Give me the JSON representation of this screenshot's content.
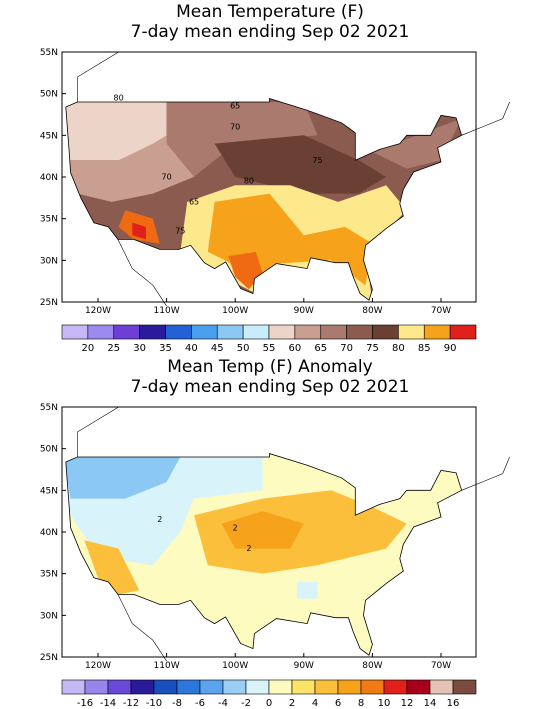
{
  "panels": [
    {
      "title_lines": [
        "Mean Temperature (F)",
        "7-day mean ending Sep 02 2021"
      ],
      "lat_labels": [
        "55N",
        "50N",
        "45N",
        "40N",
        "35N",
        "30N",
        "25N"
      ],
      "lon_labels": [
        "120W",
        "110W",
        "100W",
        "90W",
        "80W",
        "70W"
      ],
      "contour_labels": [
        80,
        65,
        70,
        75,
        70,
        80,
        65,
        75
      ],
      "colorbar": {
        "colors": [
          "#c8b7f5",
          "#9c8af0",
          "#6e3fd6",
          "#2a1a9c",
          "#2460d6",
          "#4aa0ee",
          "#8cc8f4",
          "#c9ecfa",
          "#ecd4c8",
          "#c99f92",
          "#a97a6d",
          "#8b5b50",
          "#6a4035",
          "#fde98c",
          "#f7a21b",
          "#e0201a"
        ],
        "labels": [
          20,
          25,
          30,
          35,
          40,
          45,
          50,
          55,
          60,
          65,
          70,
          75,
          80,
          85,
          90
        ]
      }
    },
    {
      "title_lines": [
        "Mean Temp (F) Anomaly",
        "7-day mean ending Sep 02 2021"
      ],
      "lat_labels": [
        "55N",
        "50N",
        "45N",
        "40N",
        "35N",
        "30N",
        "25N"
      ],
      "lon_labels": [
        "120W",
        "110W",
        "100W",
        "90W",
        "80W",
        "70W"
      ],
      "contour_labels": [
        2,
        2,
        2
      ],
      "colorbar": {
        "colors": [
          "#c8b7f5",
          "#9a85ec",
          "#6a48d8",
          "#2a1a9c",
          "#1a4fc0",
          "#2a78dc",
          "#5aa3ee",
          "#9ccdf5",
          "#d8f4fa",
          "#fefbc0",
          "#fde36a",
          "#fbbf3c",
          "#f7a21b",
          "#f07a14",
          "#e0201a",
          "#a8001c",
          "#e6c2b6",
          "#7a4c40"
        ],
        "labels": [
          -16,
          -14,
          -12,
          -10,
          -8,
          -6,
          -4,
          -2,
          0,
          2,
          4,
          6,
          8,
          10,
          12,
          14,
          16
        ]
      }
    }
  ]
}
